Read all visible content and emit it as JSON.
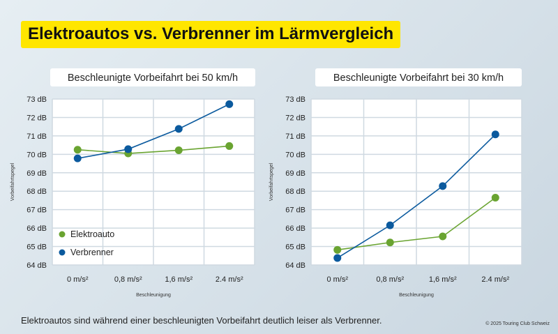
{
  "title": "Elektroautos vs. Verbrenner im Lärmvergleich",
  "footer": "Elektroautos sind während einer beschleunigten Vorbeifahrt deutlich leiser als Verbrenner.",
  "copyright": "© 2025 Touring Club Schweiz",
  "colors": {
    "elektro": "#6aa431",
    "verbrenner": "#0b5a9e",
    "highlight": "#ffe600"
  },
  "chart_data": [
    {
      "type": "line",
      "title": "Beschleunigte Vorbeifahrt bei 50 km/h",
      "xlabel": "Beschleunigung",
      "ylabel": "Vorbeifahrtspegel",
      "categories": [
        "0 m/s²",
        "0,8 m/s²",
        "1,6 m/s²",
        "2.4 m/s²"
      ],
      "yticks": [
        "64 dB",
        "65 dB",
        "66 dB",
        "67 dB",
        "68 dB",
        "69 dB",
        "70 dB",
        "71 dB",
        "72 dB",
        "73 dB"
      ],
      "ylim": [
        64,
        73
      ],
      "grid": true,
      "legend": "bottom-left",
      "series": [
        {
          "name": "Elektroauto",
          "values": [
            70.25,
            70.05,
            70.22,
            70.45
          ]
        },
        {
          "name": "Verbrenner",
          "values": [
            69.78,
            70.28,
            71.38,
            72.72
          ]
        }
      ]
    },
    {
      "type": "line",
      "title": "Beschleunigte Vorbeifahrt bei 30 km/h",
      "xlabel": "Beschleunigung",
      "ylabel": "Vorbeifahrtspegel",
      "categories": [
        "0 m/s²",
        "0,8 m/s²",
        "1,6 m/s²",
        "2.4 m/s²"
      ],
      "yticks": [
        "64 dB",
        "65 dB",
        "66 dB",
        "67 dB",
        "68 dB",
        "69 dB",
        "70 dB",
        "71 dB",
        "72 dB",
        "73 dB"
      ],
      "ylim": [
        64,
        73
      ],
      "grid": true,
      "legend": "none",
      "series": [
        {
          "name": "Elektroauto",
          "values": [
            64.82,
            65.22,
            65.55,
            67.65
          ]
        },
        {
          "name": "Verbrenner",
          "values": [
            64.38,
            66.15,
            68.28,
            71.08
          ]
        }
      ]
    }
  ]
}
